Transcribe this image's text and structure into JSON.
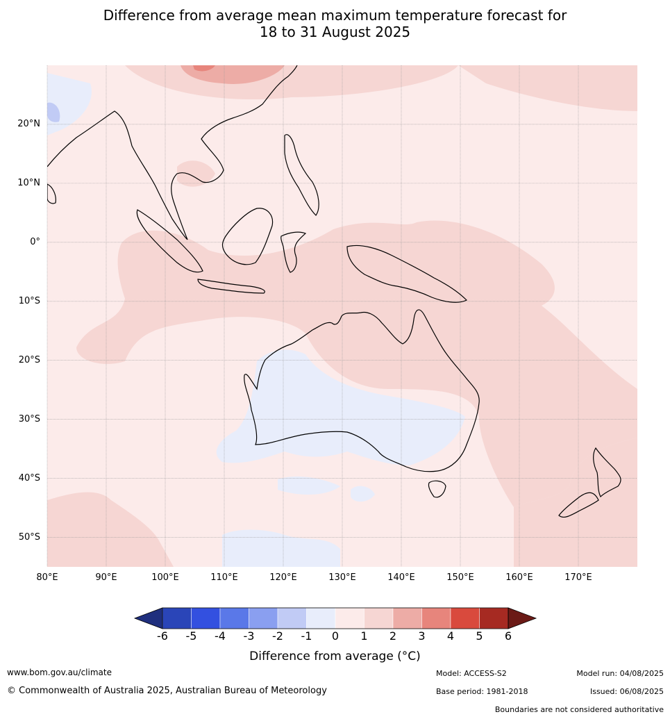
{
  "title": {
    "line1": "Difference from average mean maximum temperature forecast for",
    "line2": "18 to 31 August 2025"
  },
  "map": {
    "lat_labels": [
      "20°N",
      "10°N",
      "0°",
      "10°S",
      "20°S",
      "30°S",
      "40°S",
      "50°S"
    ],
    "lat_values": [
      20,
      10,
      0,
      -10,
      -20,
      -30,
      -40,
      -50
    ],
    "lon_labels": [
      "80°E",
      "90°E",
      "100°E",
      "110°E",
      "120°E",
      "130°E",
      "140°E",
      "150°E",
      "160°E",
      "170°E"
    ],
    "lon_values": [
      80,
      90,
      100,
      110,
      120,
      130,
      140,
      150,
      160,
      170
    ],
    "lon_range": [
      80,
      180
    ],
    "lat_range": [
      -55,
      30
    ]
  },
  "colorbar": {
    "ticks": [
      "-6",
      "-5",
      "-4",
      "-3",
      "-2",
      "-1",
      "0",
      "1",
      "2",
      "3",
      "4",
      "5",
      "6"
    ],
    "colors": [
      "#1f2f7e",
      "#2a45b8",
      "#3350e0",
      "#5a78e8",
      "#8a9ff0",
      "#c1cbf5",
      "#e8edfb",
      "#fcebea",
      "#f6d6d3",
      "#edaca6",
      "#e7857c",
      "#d94a3d",
      "#a62a22",
      "#6b1a16"
    ],
    "title": "Difference from average (°C)"
  },
  "footer": {
    "website": "www.bom.gov.au/climate",
    "copyright": "© Commonwealth of Australia 2025, Australian Bureau of Meteorology",
    "model": "Model: ACCESS-S2",
    "base_period": "Base period: 1981-2018",
    "model_run": "Model run: 04/08/2025",
    "issued": "Issued: 06/08/2025",
    "boundaries": "Boundaries are not considered authoritative"
  }
}
